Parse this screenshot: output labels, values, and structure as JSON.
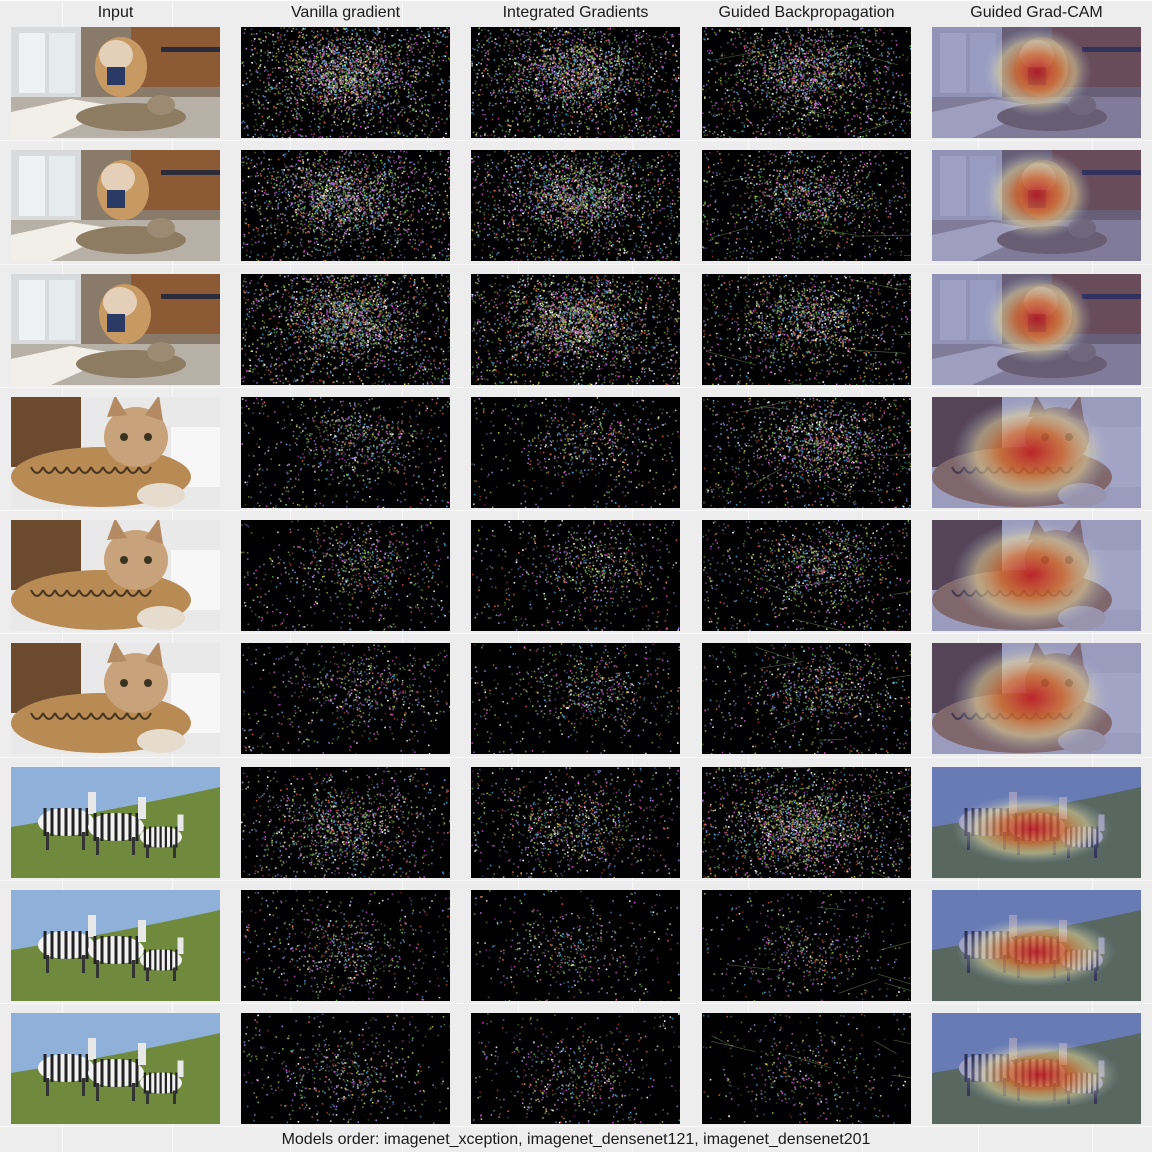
{
  "columns": [
    {
      "key": "input",
      "label": "Input"
    },
    {
      "key": "vanilla",
      "label": "Vanilla gradient"
    },
    {
      "key": "integrated",
      "label": "Integrated Gradients"
    },
    {
      "key": "guided_bp",
      "label": "Guided Backpropagation"
    },
    {
      "key": "gradcam",
      "label": "Guided Grad-CAM"
    }
  ],
  "rows": [
    {
      "subject": "dog-and-cat"
    },
    {
      "subject": "dog-and-cat"
    },
    {
      "subject": "dog-and-cat"
    },
    {
      "subject": "cat"
    },
    {
      "subject": "cat"
    },
    {
      "subject": "cat"
    },
    {
      "subject": "zebras"
    },
    {
      "subject": "zebras"
    },
    {
      "subject": "zebras"
    }
  ],
  "footer": "Models order: imagenet_xception, imagenet_densenet121, imagenet_densenet201"
}
